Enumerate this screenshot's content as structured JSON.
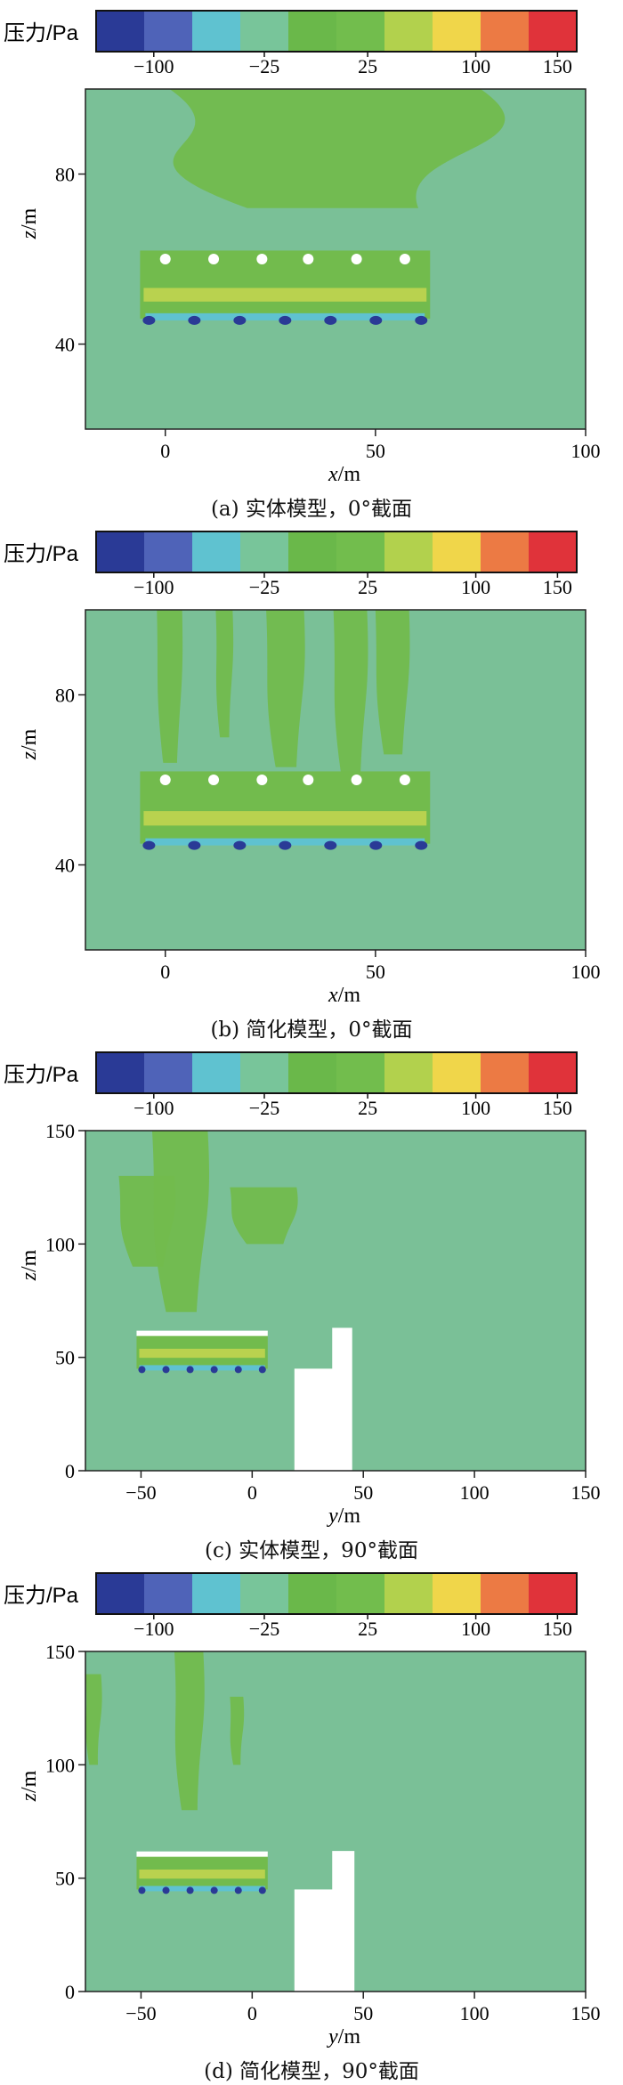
{
  "colorbar": {
    "title": "压力/Pa",
    "ticks": [
      "−100",
      "−25",
      "25",
      "100",
      "150"
    ],
    "colors": [
      "#2a3a96",
      "#4f63b8",
      "#5fc2d0",
      "#78c59a",
      "#6ab84a",
      "#72bd4d",
      "#b2d14d",
      "#f0d64a",
      "#ec7a44",
      "#e0333a"
    ]
  },
  "field_color": "#7ac097",
  "pos_color": "#72bb4d",
  "chart_data": [
    {
      "type": "heatmap",
      "caption": "(a) 实体模型，0°截面",
      "xlabel_var": "x",
      "xlabel_unit": "/m",
      "ylabel_var": "z",
      "ylabel_unit": "/m",
      "xlim": [
        -19,
        100
      ],
      "ylim": [
        20,
        100
      ],
      "xticks": [
        "0",
        "50",
        "100"
      ],
      "xtick_values": [
        0,
        50,
        100
      ],
      "yticks": [
        "40",
        "80"
      ],
      "ytick_values": [
        40,
        80
      ],
      "body": {
        "x0": -6,
        "x1": 63,
        "z0": 46,
        "z1": 62
      },
      "holes_z": 60,
      "holes_x": [
        0,
        11.5,
        23,
        34,
        45.5,
        57
      ],
      "plumes": [
        [
          1,
          75,
          72,
          100,
          97
        ]
      ]
    },
    {
      "type": "heatmap",
      "caption": "(b) 简化模型，0°截面",
      "xlabel_var": "x",
      "xlabel_unit": "/m",
      "ylabel_var": "z",
      "ylabel_unit": "/m",
      "xlim": [
        -19,
        100
      ],
      "ylim": [
        20,
        100
      ],
      "xticks": [
        "0",
        "50",
        "100"
      ],
      "xtick_values": [
        0,
        50,
        100
      ],
      "yticks": [
        "40",
        "80"
      ],
      "ytick_values": [
        40,
        80
      ],
      "body": {
        "x0": -6,
        "x1": 63,
        "z0": 45,
        "z1": 62
      },
      "holes_z": 60,
      "holes_x": [
        0,
        11.5,
        23,
        34,
        45.5,
        57
      ],
      "plumes": [
        [
          -2,
          4,
          64,
          100,
          2
        ],
        [
          12,
          16,
          70,
          100,
          3
        ],
        [
          24,
          33,
          63,
          100,
          4
        ],
        [
          40,
          48,
          60,
          100,
          4
        ],
        [
          50,
          58,
          66,
          100,
          3
        ]
      ]
    },
    {
      "type": "heatmap",
      "caption": "(c) 实体模型，90°截面",
      "xlabel_var": "y",
      "xlabel_unit": "/m",
      "ylabel_var": "z",
      "ylabel_unit": "/m",
      "xlim": [
        -75,
        150
      ],
      "ylim": [
        0,
        150
      ],
      "xticks": [
        "−50",
        "0",
        "50",
        "100",
        "150"
      ],
      "xtick_values": [
        -50,
        0,
        50,
        100,
        150
      ],
      "yticks": [
        "0",
        "50",
        "100",
        "150"
      ],
      "ytick_values": [
        0,
        50,
        100,
        150
      ],
      "deck": {
        "y0": -52,
        "y1": 7,
        "z0": 45,
        "z1": 61
      },
      "building": [
        [
          19,
          0
        ],
        [
          45,
          0
        ],
        [
          45,
          63
        ],
        [
          36,
          63
        ],
        [
          36,
          45
        ],
        [
          19,
          45
        ]
      ],
      "plumes": [
        [
          -60,
          -35,
          90,
          130,
          5
        ],
        [
          -45,
          -20,
          70,
          150,
          6
        ],
        [
          -10,
          20,
          100,
          125,
          5
        ]
      ]
    },
    {
      "type": "heatmap",
      "caption": "(d) 简化模型，90°截面",
      "xlabel_var": "y",
      "xlabel_unit": "/m",
      "ylabel_var": "z",
      "ylabel_unit": "/m",
      "xlim": [
        -75,
        150
      ],
      "ylim": [
        0,
        150
      ],
      "xticks": [
        "−50",
        "0",
        "50",
        "100",
        "150"
      ],
      "xtick_values": [
        -50,
        0,
        50,
        100,
        150
      ],
      "yticks": [
        "0",
        "50",
        "100",
        "150"
      ],
      "ytick_values": [
        0,
        50,
        100,
        150
      ],
      "deck": {
        "y0": -52,
        "y1": 7,
        "z0": 45,
        "z1": 61
      },
      "building": [
        [
          19,
          0
        ],
        [
          46,
          0
        ],
        [
          46,
          62
        ],
        [
          36,
          62
        ],
        [
          36,
          45
        ],
        [
          19,
          45
        ]
      ],
      "plumes": [
        [
          -75,
          -68,
          100,
          140,
          4
        ],
        [
          -35,
          -22,
          80,
          150,
          5
        ],
        [
          -10,
          -4,
          100,
          130,
          3
        ]
      ]
    }
  ]
}
